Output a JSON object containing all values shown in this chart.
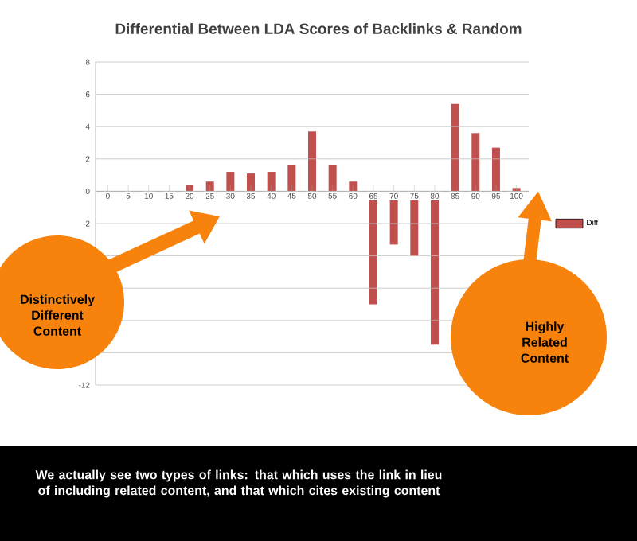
{
  "chart_data": {
    "type": "bar",
    "title": "Differential Between LDA Scores of Backlinks & Random",
    "categories": [
      "0",
      "5",
      "10",
      "15",
      "20",
      "25",
      "30",
      "35",
      "40",
      "45",
      "50",
      "55",
      "60",
      "65",
      "70",
      "75",
      "80",
      "85",
      "90",
      "95",
      "100"
    ],
    "series": [
      {
        "name": "Diff",
        "color": "#c0504d",
        "values": [
          0,
          0,
          0,
          0,
          0.4,
          0.6,
          1.2,
          1.1,
          1.2,
          1.6,
          3.7,
          1.6,
          0.6,
          -7.0,
          -3.3,
          -4.0,
          -9.5,
          5.4,
          3.6,
          2.7,
          0.2
        ]
      }
    ],
    "ylim": [
      -12,
      8
    ],
    "yticks": [
      8,
      6,
      4,
      2,
      0,
      -2,
      {
        "value": -4,
        "label": null
      },
      {
        "value": -6,
        "label": null
      },
      {
        "value": -8,
        "label": null
      },
      {
        "value": -10,
        "label": null
      },
      -12
    ],
    "grid": "y",
    "legend": "right",
    "annotations": [
      "Distinctively Different Content",
      "Highly Related Content",
      "We actually see two types of links: that which uses the link in lieu of including related content, and that which cites existing content"
    ]
  }
}
